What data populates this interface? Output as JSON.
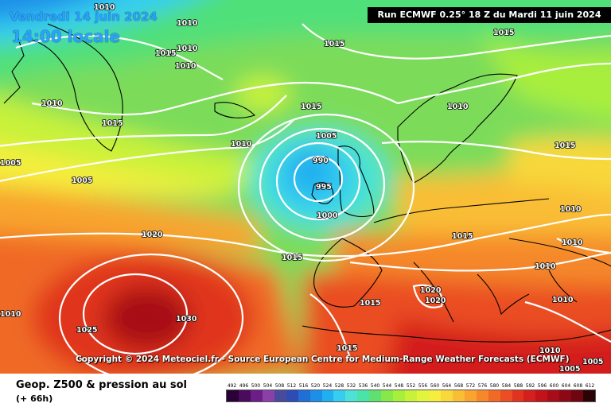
{
  "header": {
    "run_info": "Run ECMWF 0.25° 18 Z du Mardi 11 juin 2024",
    "valid_date": "Vendredi 14 juin 2024",
    "valid_time": "14:00 locale"
  },
  "map": {
    "region": "North Atlantic and Europe",
    "low_pressure_center": {
      "label": "990",
      "location": "west of Ireland"
    },
    "high_pressure_center": {
      "label": "1030",
      "location": "Azores"
    },
    "isobar_labels": [
      "1010",
      "1015",
      "1010",
      "1010",
      "1010",
      "1015",
      "1005",
      "1005",
      "1010",
      "1015",
      "1010",
      "1005",
      "990",
      "995",
      "1000",
      "1010",
      "1015",
      "1020",
      "1015",
      "1015",
      "1015",
      "1015",
      "1015",
      "1010",
      "1010",
      "1020",
      "1020",
      "1010",
      "1010",
      "1015",
      "1025",
      "1030",
      "1010",
      "1010",
      "1005",
      "1005"
    ]
  },
  "copyright": "Copyright © 2024 Meteociel.fr - Source European Centre for Medium-Range Weather Forecasts (ECMWF)",
  "footer": {
    "title": "Geop. Z500 & pression au sol",
    "step": "(+ 66h)"
  },
  "legend": {
    "values": [
      "492",
      "496",
      "500",
      "504",
      "508",
      "512",
      "516",
      "520",
      "524",
      "528",
      "532",
      "536",
      "540",
      "544",
      "548",
      "552",
      "556",
      "560",
      "564",
      "568",
      "572",
      "576",
      "580",
      "584",
      "588",
      "592",
      "596",
      "600",
      "604",
      "608",
      "612"
    ],
    "colors": [
      "#2a0036",
      "#4b0b5c",
      "#6c1e86",
      "#8b3fa8",
      "#4a4a9a",
      "#2d4db5",
      "#1f6fd6",
      "#1d8fe8",
      "#20b0ef",
      "#36cdf0",
      "#4fe0d6",
      "#4be4a8",
      "#60e070",
      "#86e84a",
      "#a8ee3c",
      "#c8f23a",
      "#e2f43c",
      "#f5ee3e",
      "#f8d83a",
      "#f9be34",
      "#f8a42e",
      "#f5882a",
      "#f06a25",
      "#ea4e22",
      "#e0341f",
      "#d41f1c",
      "#c2121a",
      "#a80c18",
      "#8c0815",
      "#6e0510",
      "#2b0205"
    ]
  }
}
